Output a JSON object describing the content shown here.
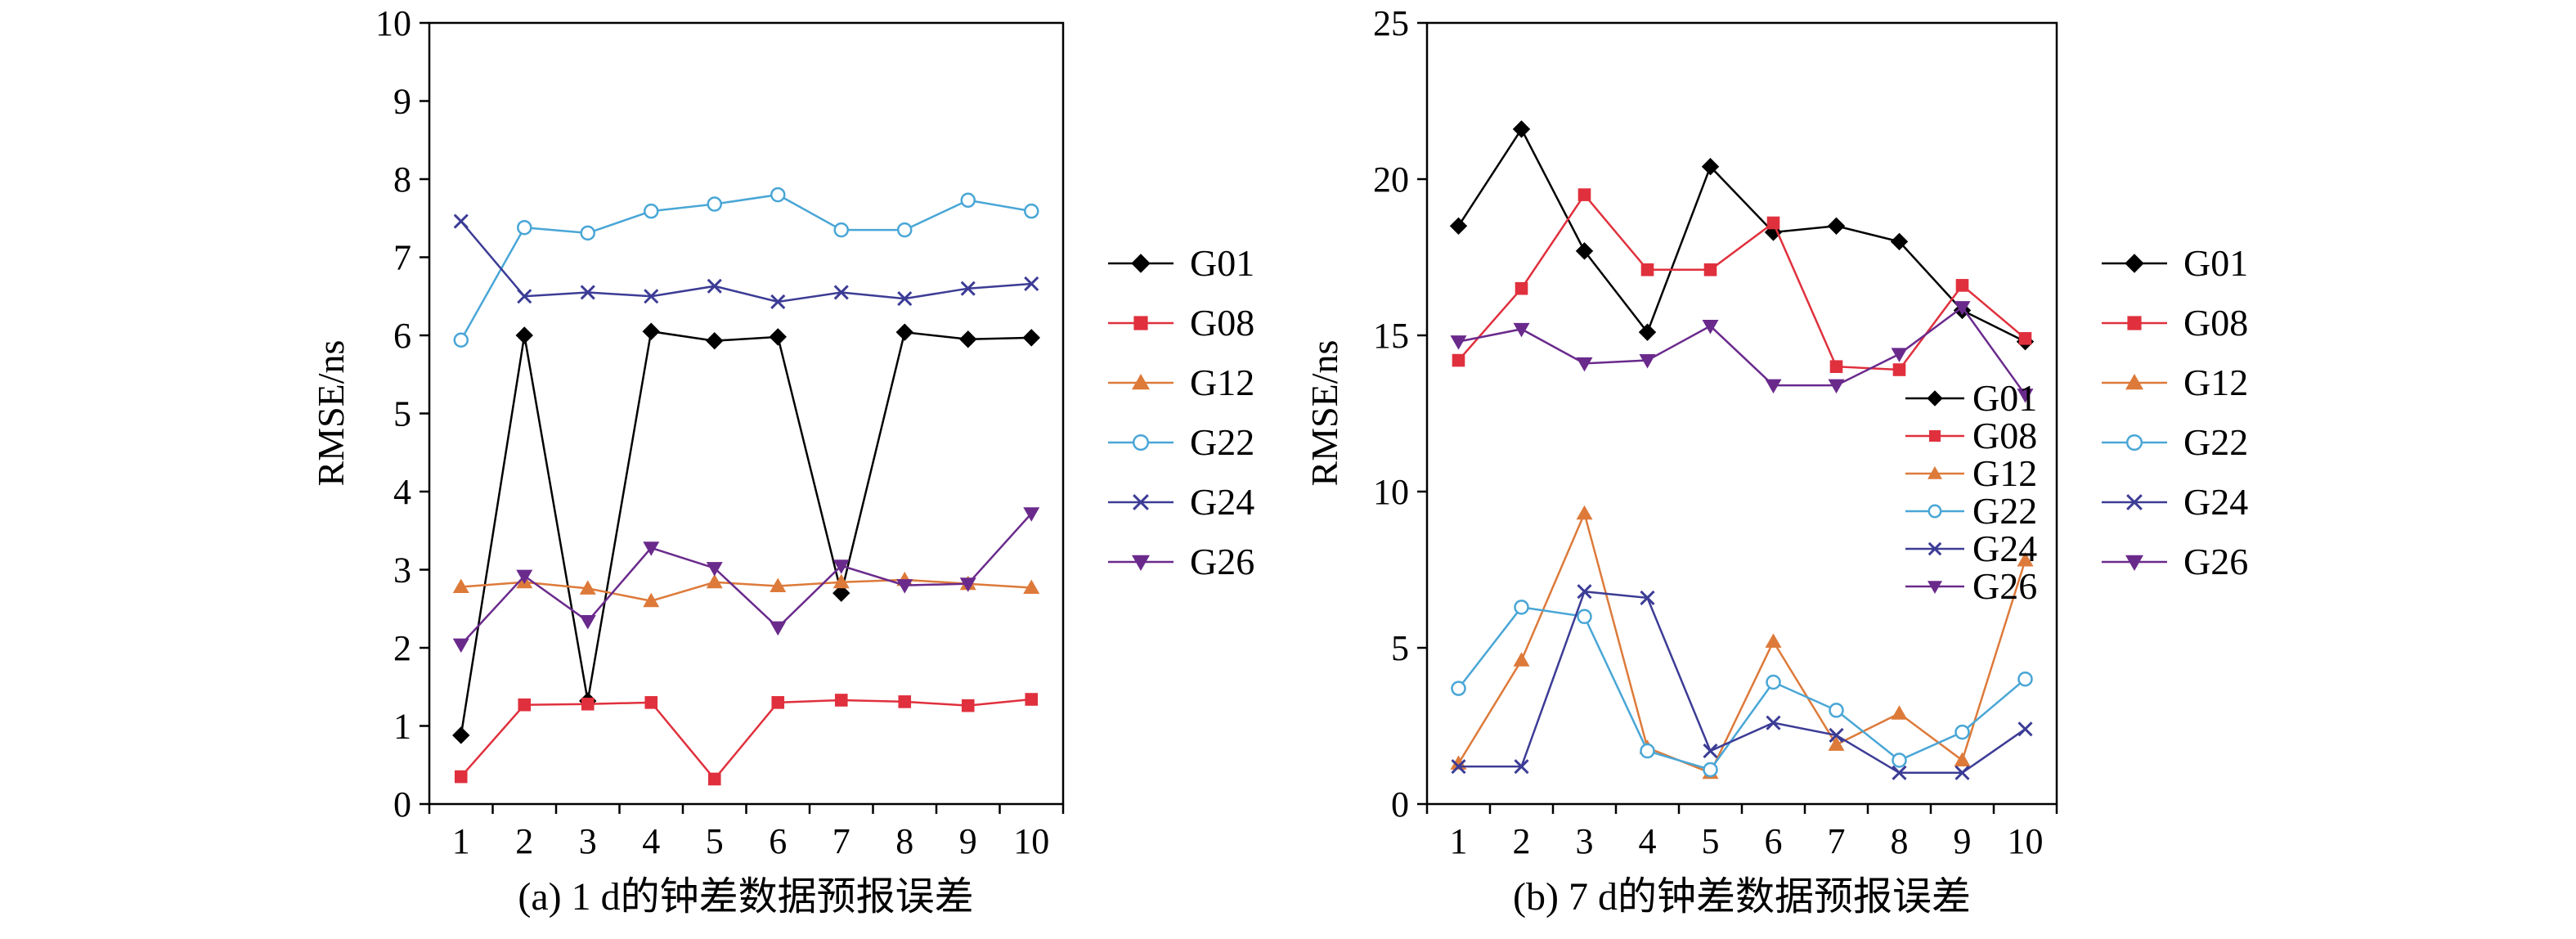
{
  "chart_data": [
    {
      "type": "line",
      "caption": "(a) 1 d的钟差数据预报误差",
      "ylabel": "RMSE/ns",
      "xlabel": "",
      "ylim": [
        0,
        10
      ],
      "yticks": [
        "0",
        "1",
        "2",
        "3",
        "4",
        "5",
        "6",
        "7",
        "8",
        "9",
        "10"
      ],
      "x": [
        "1",
        "2",
        "3",
        "4",
        "5",
        "6",
        "7",
        "8",
        "9",
        "10"
      ],
      "legend_position": "right-outside",
      "series": [
        {
          "name": "G01",
          "color": "#000000",
          "marker": "diamond",
          "values": [
            0.88,
            6.0,
            1.32,
            6.05,
            5.93,
            5.98,
            2.7,
            6.04,
            5.95,
            5.97
          ]
        },
        {
          "name": "G08",
          "color": "#e0303d",
          "marker": "square",
          "values": [
            0.35,
            1.27,
            1.28,
            1.3,
            0.32,
            1.3,
            1.33,
            1.31,
            1.26,
            1.34
          ]
        },
        {
          "name": "G12",
          "color": "#dd7a3a",
          "marker": "triangle",
          "values": [
            2.78,
            2.84,
            2.76,
            2.6,
            2.84,
            2.79,
            2.84,
            2.87,
            2.82,
            2.77
          ]
        },
        {
          "name": "G22",
          "color": "#49a6d6",
          "marker": "circle",
          "values": [
            5.94,
            7.38,
            7.31,
            7.59,
            7.68,
            7.8,
            7.35,
            7.35,
            7.73,
            7.59
          ]
        },
        {
          "name": "G24",
          "color": "#3c3c96",
          "marker": "cross",
          "values": [
            7.46,
            6.5,
            6.55,
            6.5,
            6.63,
            6.43,
            6.55,
            6.47,
            6.6,
            6.66
          ]
        },
        {
          "name": "G26",
          "color": "#6a2a8c",
          "marker": "triangle-down",
          "values": [
            2.04,
            2.92,
            2.34,
            3.28,
            3.02,
            2.26,
            3.05,
            2.8,
            2.82,
            3.72
          ]
        }
      ]
    },
    {
      "type": "line",
      "caption": "(b) 7 d的钟差数据预报误差",
      "ylabel": "RMSE/ns",
      "xlabel": "",
      "ylim": [
        0,
        25
      ],
      "yticks": [
        "0",
        "5",
        "10",
        "15",
        "20",
        "25"
      ],
      "x": [
        "1",
        "2",
        "3",
        "4",
        "5",
        "6",
        "7",
        "8",
        "9",
        "10"
      ],
      "legend_position": "right-outside",
      "inner_legend": true,
      "series": [
        {
          "name": "G01",
          "color": "#000000",
          "marker": "diamond",
          "values": [
            18.5,
            21.6,
            17.7,
            15.1,
            20.4,
            18.3,
            18.5,
            18.0,
            15.8,
            14.8
          ]
        },
        {
          "name": "G08",
          "color": "#e0303d",
          "marker": "square",
          "values": [
            14.2,
            16.5,
            19.5,
            17.1,
            17.1,
            18.6,
            14.0,
            13.9,
            16.6,
            14.9
          ]
        },
        {
          "name": "G12",
          "color": "#dd7a3a",
          "marker": "triangle",
          "values": [
            1.3,
            4.6,
            9.3,
            1.8,
            1.0,
            5.2,
            1.9,
            2.9,
            1.4,
            7.8
          ]
        },
        {
          "name": "G22",
          "color": "#49a6d6",
          "marker": "circle",
          "values": [
            3.7,
            6.3,
            6.0,
            1.7,
            1.1,
            3.9,
            3.0,
            1.4,
            2.3,
            4.0
          ]
        },
        {
          "name": "G24",
          "color": "#3c3c96",
          "marker": "cross",
          "values": [
            1.2,
            1.2,
            6.8,
            6.6,
            1.7,
            2.6,
            2.2,
            1.0,
            1.0,
            2.4
          ]
        },
        {
          "name": "G26",
          "color": "#6a2a8c",
          "marker": "triangle-down",
          "values": [
            14.8,
            15.2,
            14.1,
            14.2,
            15.3,
            13.4,
            13.4,
            14.4,
            15.9,
            13.1
          ]
        }
      ]
    }
  ]
}
